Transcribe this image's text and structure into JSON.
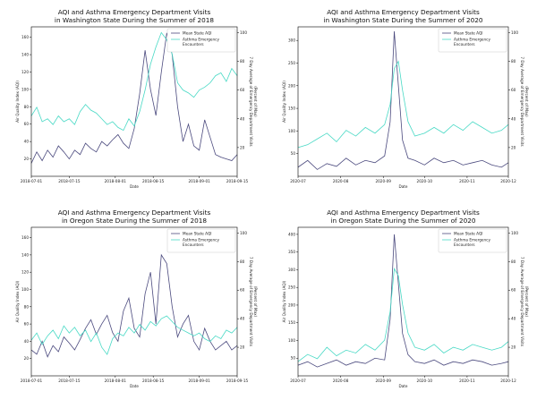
{
  "colors": {
    "aqi": "#4b4a7e",
    "asthma": "#48d9c5"
  },
  "chart_data": [
    {
      "type": "line",
      "title_lines": [
        "AQI and Asthma Emergency Department Visits",
        "in Washington State During the Summer of 2018"
      ],
      "xlabel": "Date",
      "ylabel": "Air Quality Index (AQI)",
      "y2label_lines": [
        "7 Day Average of Emergency Department Visits",
        "(Percent of Max)"
      ],
      "xlim": [
        "2018-07-01",
        "2018-09-15"
      ],
      "ylim": [
        0,
        172
      ],
      "y2lim": [
        0,
        104
      ],
      "xticks": [
        "2018-07-01",
        "2018-07-15",
        "2018-08-01",
        "2018-08-15",
        "2018-09-01",
        "2018-09-15"
      ],
      "yticks": [
        20,
        40,
        60,
        80,
        100,
        120,
        140,
        160
      ],
      "y2ticks": [
        20,
        40,
        60,
        80,
        100
      ],
      "legend": {
        "position": "top-right",
        "entries": [
          "Mean State AQI",
          "Asthma Emergency Encounters"
        ]
      },
      "series": [
        {
          "name": "Mean State AQI",
          "axis": "left",
          "x": [
            "2018-07-01",
            "2018-07-03",
            "2018-07-05",
            "2018-07-07",
            "2018-07-09",
            "2018-07-11",
            "2018-07-13",
            "2018-07-15",
            "2018-07-17",
            "2018-07-19",
            "2018-07-21",
            "2018-07-23",
            "2018-07-25",
            "2018-07-27",
            "2018-07-29",
            "2018-07-31",
            "2018-08-02",
            "2018-08-04",
            "2018-08-06",
            "2018-08-08",
            "2018-08-10",
            "2018-08-12",
            "2018-08-14",
            "2018-08-16",
            "2018-08-18",
            "2018-08-20",
            "2018-08-22",
            "2018-08-24",
            "2018-08-26",
            "2018-08-28",
            "2018-08-30",
            "2018-09-01",
            "2018-09-03",
            "2018-09-05",
            "2018-09-07",
            "2018-09-09",
            "2018-09-11",
            "2018-09-13",
            "2018-09-15"
          ],
          "y": [
            15,
            28,
            18,
            30,
            22,
            35,
            28,
            20,
            30,
            25,
            38,
            32,
            28,
            40,
            35,
            42,
            48,
            38,
            32,
            55,
            95,
            145,
            100,
            70,
            120,
            165,
            140,
            80,
            40,
            60,
            35,
            30,
            65,
            45,
            25,
            22,
            20,
            18,
            25
          ]
        },
        {
          "name": "Asthma Emergency Encounters",
          "axis": "right",
          "x": [
            "2018-07-01",
            "2018-07-03",
            "2018-07-05",
            "2018-07-07",
            "2018-07-09",
            "2018-07-11",
            "2018-07-13",
            "2018-07-15",
            "2018-07-17",
            "2018-07-19",
            "2018-07-21",
            "2018-07-23",
            "2018-07-25",
            "2018-07-27",
            "2018-07-29",
            "2018-07-31",
            "2018-08-02",
            "2018-08-04",
            "2018-08-06",
            "2018-08-08",
            "2018-08-10",
            "2018-08-12",
            "2018-08-14",
            "2018-08-16",
            "2018-08-18",
            "2018-08-20",
            "2018-08-22",
            "2018-08-24",
            "2018-08-26",
            "2018-08-28",
            "2018-08-30",
            "2018-09-01",
            "2018-09-03",
            "2018-09-05",
            "2018-09-07",
            "2018-09-09",
            "2018-09-11",
            "2018-09-13",
            "2018-09-15"
          ],
          "y": [
            42,
            48,
            38,
            40,
            36,
            42,
            38,
            40,
            36,
            45,
            50,
            46,
            44,
            40,
            36,
            38,
            34,
            32,
            40,
            35,
            45,
            60,
            78,
            90,
            100,
            95,
            85,
            65,
            60,
            58,
            55,
            60,
            62,
            65,
            70,
            72,
            66,
            75,
            70
          ]
        }
      ]
    },
    {
      "type": "line",
      "title_lines": [
        "AQI and Asthma Emergency Department Visits",
        "in Washington State During the Summer of 2020"
      ],
      "xlabel": "Date",
      "ylabel": "Air Quality Index (AQI)",
      "y2label_lines": [
        "7 Day Average of Emergency Department Visits",
        "(Percent of Max)"
      ],
      "xlim": [
        "2020-07-01",
        "2020-12-01"
      ],
      "ylim": [
        0,
        330
      ],
      "y2lim": [
        0,
        104
      ],
      "xticks": [
        "2020-07",
        "2020-08",
        "2020-09",
        "2020-10",
        "2020-11",
        "2020-12"
      ],
      "yticks": [
        50,
        100,
        150,
        200,
        250,
        300
      ],
      "y2ticks": [
        20,
        40,
        60,
        80,
        100
      ],
      "legend": {
        "position": "top-right",
        "entries": [
          "Mean State AQI",
          "Asthma Emergency Encounters"
        ]
      },
      "series": [
        {
          "name": "Mean State AQI",
          "axis": "left",
          "x": [
            "2020-07-01",
            "2020-07-08",
            "2020-07-15",
            "2020-07-22",
            "2020-07-29",
            "2020-08-05",
            "2020-08-12",
            "2020-08-19",
            "2020-08-26",
            "2020-09-02",
            "2020-09-06",
            "2020-09-09",
            "2020-09-12",
            "2020-09-15",
            "2020-09-19",
            "2020-09-24",
            "2020-10-01",
            "2020-10-08",
            "2020-10-15",
            "2020-10-22",
            "2020-10-29",
            "2020-11-05",
            "2020-11-12",
            "2020-11-19",
            "2020-11-26",
            "2020-12-01"
          ],
          "y": [
            20,
            35,
            15,
            28,
            22,
            40,
            25,
            35,
            30,
            45,
            120,
            320,
            200,
            80,
            40,
            35,
            25,
            40,
            30,
            35,
            25,
            30,
            35,
            25,
            20,
            30
          ]
        },
        {
          "name": "Asthma Emergency Encounters",
          "axis": "right",
          "x": [
            "2020-07-01",
            "2020-07-08",
            "2020-07-15",
            "2020-07-22",
            "2020-07-29",
            "2020-08-05",
            "2020-08-12",
            "2020-08-19",
            "2020-08-26",
            "2020-09-02",
            "2020-09-06",
            "2020-09-09",
            "2020-09-12",
            "2020-09-15",
            "2020-09-19",
            "2020-09-24",
            "2020-10-01",
            "2020-10-08",
            "2020-10-15",
            "2020-10-22",
            "2020-10-29",
            "2020-11-05",
            "2020-11-12",
            "2020-11-19",
            "2020-11-26",
            "2020-12-01"
          ],
          "y": [
            20,
            22,
            26,
            30,
            24,
            32,
            28,
            34,
            30,
            36,
            50,
            75,
            80,
            60,
            38,
            28,
            30,
            34,
            30,
            36,
            32,
            38,
            34,
            30,
            32,
            36
          ]
        }
      ]
    },
    {
      "type": "line",
      "title_lines": [
        "AQI and Asthma Emergency Department Visits",
        "in Oregon State During the Summer of 2018"
      ],
      "xlabel": "Date",
      "ylabel": "Air Quality Index (AQI)",
      "y2label_lines": [
        "7 Day Average of Emergency Department Visits",
        "(Percent of Max)"
      ],
      "xlim": [
        "2018-07-01",
        "2018-09-15"
      ],
      "ylim": [
        0,
        172
      ],
      "y2lim": [
        0,
        104
      ],
      "xticks": [
        "2018-07-01",
        "2018-07-15",
        "2018-08-01",
        "2018-08-15",
        "2018-09-01",
        "2018-09-15"
      ],
      "yticks": [
        20,
        40,
        60,
        80,
        100,
        120,
        140,
        160
      ],
      "y2ticks": [
        20,
        40,
        60,
        80,
        100
      ],
      "legend": {
        "position": "top-right",
        "entries": [
          "Mean State AQI",
          "Asthma Emergency Encounters"
        ]
      },
      "series": [
        {
          "name": "Mean State AQI",
          "axis": "left",
          "x": [
            "2018-07-01",
            "2018-07-03",
            "2018-07-05",
            "2018-07-07",
            "2018-07-09",
            "2018-07-11",
            "2018-07-13",
            "2018-07-15",
            "2018-07-17",
            "2018-07-19",
            "2018-07-21",
            "2018-07-23",
            "2018-07-25",
            "2018-07-27",
            "2018-07-29",
            "2018-07-31",
            "2018-08-02",
            "2018-08-04",
            "2018-08-06",
            "2018-08-08",
            "2018-08-10",
            "2018-08-12",
            "2018-08-14",
            "2018-08-16",
            "2018-08-18",
            "2018-08-20",
            "2018-08-22",
            "2018-08-24",
            "2018-08-26",
            "2018-08-28",
            "2018-08-30",
            "2018-09-01",
            "2018-09-03",
            "2018-09-05",
            "2018-09-07",
            "2018-09-09",
            "2018-09-11",
            "2018-09-13",
            "2018-09-15"
          ],
          "y": [
            30,
            25,
            40,
            22,
            35,
            28,
            45,
            38,
            30,
            42,
            55,
            65,
            48,
            60,
            70,
            50,
            40,
            75,
            90,
            55,
            45,
            95,
            120,
            60,
            140,
            130,
            80,
            45,
            60,
            70,
            40,
            30,
            55,
            40,
            30,
            35,
            40,
            30,
            35
          ]
        },
        {
          "name": "Asthma Emergency Encounters",
          "axis": "right",
          "x": [
            "2018-07-01",
            "2018-07-03",
            "2018-07-05",
            "2018-07-07",
            "2018-07-09",
            "2018-07-11",
            "2018-07-13",
            "2018-07-15",
            "2018-07-17",
            "2018-07-19",
            "2018-07-21",
            "2018-07-23",
            "2018-07-25",
            "2018-07-27",
            "2018-07-29",
            "2018-07-31",
            "2018-08-02",
            "2018-08-04",
            "2018-08-06",
            "2018-08-08",
            "2018-08-10",
            "2018-08-12",
            "2018-08-14",
            "2018-08-16",
            "2018-08-18",
            "2018-08-20",
            "2018-08-22",
            "2018-08-24",
            "2018-08-26",
            "2018-08-28",
            "2018-08-30",
            "2018-09-01",
            "2018-09-03",
            "2018-09-05",
            "2018-09-07",
            "2018-09-09",
            "2018-09-11",
            "2018-09-13",
            "2018-09-15"
          ],
          "y": [
            25,
            30,
            22,
            28,
            32,
            26,
            35,
            30,
            34,
            28,
            32,
            24,
            30,
            20,
            15,
            26,
            30,
            28,
            34,
            30,
            36,
            32,
            38,
            35,
            40,
            42,
            38,
            34,
            32,
            30,
            28,
            30,
            26,
            24,
            28,
            26,
            32,
            30,
            34
          ]
        }
      ]
    },
    {
      "type": "line",
      "title_lines": [
        "AQI and Asthma Emergency Department Visits",
        "in Oregon State During the Summer of 2020"
      ],
      "xlabel": "Date",
      "ylabel": "Air Quality Index (AQI)",
      "y2label_lines": [
        "7 Day Average of Emergency Department Visits",
        "(Percent of Max)"
      ],
      "xlim": [
        "2020-07-01",
        "2020-12-01"
      ],
      "ylim": [
        0,
        420
      ],
      "y2lim": [
        0,
        104
      ],
      "xticks": [
        "2020-07",
        "2020-08",
        "2020-09",
        "2020-10",
        "2020-11",
        "2020-12"
      ],
      "yticks": [
        50,
        100,
        150,
        200,
        250,
        300,
        350,
        400
      ],
      "y2ticks": [
        20,
        40,
        60,
        80,
        100
      ],
      "legend": {
        "position": "top-right",
        "entries": [
          "Mean State AQI",
          "Asthma Emergency Encounters"
        ]
      },
      "series": [
        {
          "name": "Mean State AQI",
          "axis": "left",
          "x": [
            "2020-07-01",
            "2020-07-08",
            "2020-07-15",
            "2020-07-22",
            "2020-07-29",
            "2020-08-05",
            "2020-08-12",
            "2020-08-19",
            "2020-08-26",
            "2020-09-02",
            "2020-09-06",
            "2020-09-09",
            "2020-09-12",
            "2020-09-15",
            "2020-09-19",
            "2020-09-24",
            "2020-10-01",
            "2020-10-08",
            "2020-10-15",
            "2020-10-22",
            "2020-10-29",
            "2020-11-05",
            "2020-11-12",
            "2020-11-19",
            "2020-11-26",
            "2020-12-01"
          ],
          "y": [
            30,
            40,
            25,
            35,
            45,
            30,
            40,
            35,
            50,
            45,
            160,
            400,
            260,
            120,
            60,
            40,
            35,
            45,
            30,
            40,
            35,
            45,
            40,
            30,
            35,
            40
          ]
        },
        {
          "name": "Asthma Emergency Encounters",
          "axis": "right",
          "x": [
            "2020-07-01",
            "2020-07-08",
            "2020-07-15",
            "2020-07-22",
            "2020-07-29",
            "2020-08-05",
            "2020-08-12",
            "2020-08-19",
            "2020-08-26",
            "2020-09-02",
            "2020-09-06",
            "2020-09-09",
            "2020-09-12",
            "2020-09-15",
            "2020-09-19",
            "2020-09-24",
            "2020-10-01",
            "2020-10-08",
            "2020-10-15",
            "2020-10-22",
            "2020-10-29",
            "2020-11-05",
            "2020-11-12",
            "2020-11-19",
            "2020-11-26",
            "2020-12-01"
          ],
          "y": [
            10,
            15,
            12,
            20,
            14,
            18,
            16,
            22,
            18,
            25,
            45,
            75,
            70,
            50,
            30,
            20,
            18,
            22,
            16,
            20,
            18,
            22,
            20,
            18,
            20,
            24
          ]
        }
      ]
    }
  ]
}
